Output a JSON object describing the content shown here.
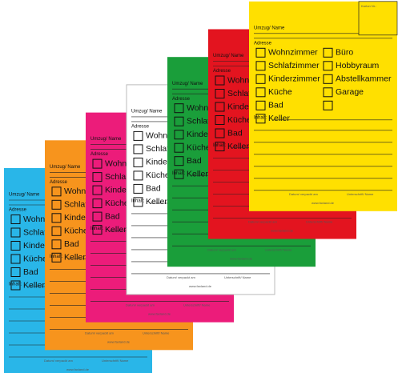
{
  "card": {
    "box_label": "Karton Nr.:",
    "name_label": "Umzug/ Name",
    "address_label": "Adresse",
    "rooms": [
      "Wohnzimmer",
      "Schlafzimmer",
      "Kinderzimmer",
      "Küche",
      "Bad",
      "Keller"
    ],
    "extra_rooms": [
      "Büro",
      "Hobbyraum",
      "Abstellkammer",
      "Garage"
    ],
    "contents_label": "Inhalt:",
    "date_label": "Datum/ verpackt am",
    "signature_label": "Unterschrift/ Name",
    "website": "www.faxland.de"
  },
  "card_colors": [
    "#29b6e8",
    "#f7941d",
    "#ec1c7a",
    "#ffffff",
    "#1a9e3a",
    "#e3141f",
    "#ffe000"
  ]
}
